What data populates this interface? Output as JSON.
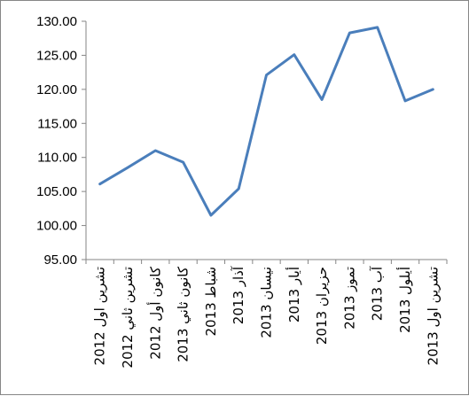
{
  "chart_data": {
    "type": "line",
    "title": "",
    "xlabel": "",
    "ylabel": "",
    "ylim": [
      95,
      130
    ],
    "yticks": [
      "95.00",
      "100.00",
      "105.00",
      "110.00",
      "115.00",
      "120.00",
      "125.00",
      "130.00"
    ],
    "grid": false,
    "legend": "none",
    "categories": [
      "تشرين اول 2012",
      "تشرين ثاني 2012",
      "كانون أول 2012",
      "كانون ثاني 2013",
      "شباط 2013",
      "آذار 2013",
      "نيسان 2013",
      "أيار 2013",
      "حزيران 2013",
      "تموز 2013",
      "آب 2013",
      "أيلول 2013",
      "تشرين اول 2013"
    ],
    "series": [
      {
        "values": [
          106.1,
          108.5,
          111.0,
          109.3,
          101.5,
          105.4,
          122.1,
          125.1,
          118.5,
          128.3,
          129.1,
          118.3,
          120.0
        ],
        "color": "#4a7ebb"
      }
    ]
  }
}
